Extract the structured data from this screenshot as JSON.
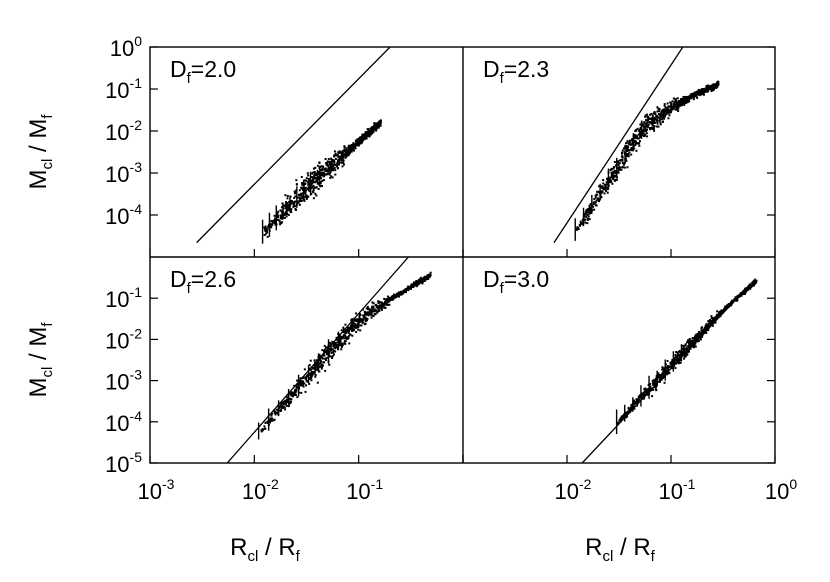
{
  "chart_data": {
    "type": "scatter",
    "layout": "2x2 panels, shared axes",
    "xlabel": {
      "base": "R",
      "base_sub": "cl",
      "sep": " / ",
      "den": "R",
      "den_sub": "f"
    },
    "ylabel": {
      "base": "M",
      "base_sub": "cl",
      "sep": " / ",
      "den": "M",
      "den_sub": "f"
    },
    "xscale": "log",
    "yscale": "log",
    "xlim": [
      0.001,
      1
    ],
    "ylim_top_row": [
      1e-05,
      1
    ],
    "ylim_bottom_row": [
      1e-05,
      1
    ],
    "x_ticks": [
      {
        "base": "10",
        "exp": "-3"
      },
      {
        "base": "10",
        "exp": "-2"
      },
      {
        "base": "10",
        "exp": "-1"
      },
      {
        "base": "10",
        "exp": "0"
      }
    ],
    "y_ticks_top": [
      {
        "base": "10",
        "exp": "0"
      },
      {
        "base": "10",
        "exp": "-1"
      },
      {
        "base": "10",
        "exp": "-2"
      },
      {
        "base": "10",
        "exp": "-3"
      },
      {
        "base": "10",
        "exp": "-4"
      }
    ],
    "y_ticks_bottom": [
      {
        "base": "10",
        "exp": "-1"
      },
      {
        "base": "10",
        "exp": "-2"
      },
      {
        "base": "10",
        "exp": "-3"
      },
      {
        "base": "10",
        "exp": "-4"
      },
      {
        "base": "10",
        "exp": "-5"
      }
    ],
    "panels": [
      {
        "label": {
          "prefix": "D",
          "sub": "f",
          "value": "=2.0"
        },
        "D_f": 2.0,
        "reference_line": [
          [
            0.0028,
            2.2e-05
          ],
          [
            0.2,
            1
          ]
        ],
        "cloud": {
          "x_range": [
            0.012,
            0.16
          ],
          "y_at_xmin": 4e-05,
          "y_at_xmax": 0.015,
          "spread": 0.45,
          "bend_x": 0.03
        }
      },
      {
        "label": {
          "prefix": "D",
          "sub": "f",
          "value": "=2.3"
        },
        "D_f": 2.3,
        "reference_line": [
          [
            0.0075,
            2.2e-05
          ],
          [
            0.13,
            1
          ]
        ],
        "cloud": {
          "x_range": [
            0.012,
            0.28
          ],
          "y_at_xmin": 4.5e-05,
          "y_at_xmax": 0.04,
          "spread": 0.4,
          "bend_x": 0.05
        }
      },
      {
        "label": {
          "prefix": "D",
          "sub": "f",
          "value": "=2.6"
        },
        "D_f": 2.6,
        "reference_line": [
          [
            0.0055,
            1e-05
          ],
          [
            0.3,
            1
          ]
        ],
        "cloud": {
          "x_range": [
            0.011,
            0.48
          ],
          "y_at_xmin": 6e-05,
          "y_at_xmax": 0.2,
          "spread": 0.35,
          "bend_x": 0.08
        }
      },
      {
        "label": {
          "prefix": "D",
          "sub": "f",
          "value": "=3.0"
        },
        "D_f": 3.0,
        "reference_line": [
          [
            0.014,
            1e-05
          ],
          [
            0.65,
            0.3
          ]
        ],
        "cloud": {
          "x_range": [
            0.03,
            0.65
          ],
          "y_at_xmin": 0.0001,
          "y_at_xmax": 0.22,
          "spread": 0.25,
          "bend_x": 0.3
        }
      }
    ]
  }
}
